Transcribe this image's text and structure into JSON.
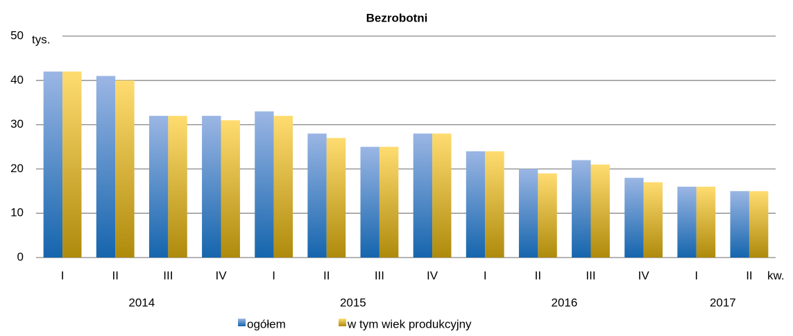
{
  "chart_data": {
    "type": "bar",
    "title": "Bezrobotni",
    "y_unit": "tys.",
    "x_unit": "kw.",
    "categories": [
      "I",
      "II",
      "III",
      "IV",
      "I",
      "II",
      "III",
      "IV",
      "I",
      "II",
      "III",
      "IV",
      "I",
      "II"
    ],
    "years": [
      "2014",
      "2015",
      "2016",
      "2017"
    ],
    "series": [
      {
        "name": "ogółem",
        "color": [
          "#9bb6e4",
          "#1565ad"
        ],
        "values": [
          42,
          41,
          32,
          32,
          33,
          28,
          25,
          28,
          24,
          20,
          22,
          18,
          16,
          15
        ]
      },
      {
        "name": "w tym wiek produkcyjny",
        "color": [
          "#ffdc70",
          "#ae8a0c"
        ],
        "values": [
          42,
          40,
          32,
          31,
          32,
          27,
          25,
          28,
          24,
          19,
          21,
          17,
          16,
          15
        ]
      }
    ],
    "ylim": [
      0,
      50
    ],
    "yticks": [
      0,
      10,
      20,
      30,
      40,
      50
    ],
    "grid": true
  }
}
